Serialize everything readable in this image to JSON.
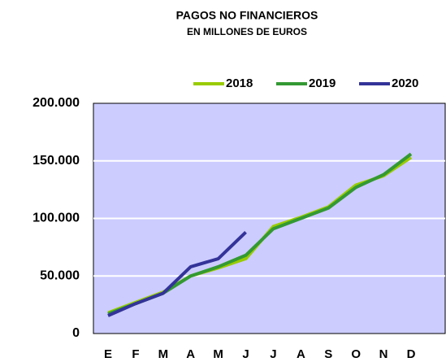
{
  "chart_data": {
    "type": "line",
    "title": "PAGOS NO FINANCIEROS",
    "subtitle": "EN MILLONES DE EUROS",
    "categories": [
      "E",
      "F",
      "M",
      "A",
      "M",
      "J",
      "J",
      "A",
      "S",
      "O",
      "N",
      "D"
    ],
    "series": [
      {
        "name": "2018",
        "color": "#99cc00",
        "values": [
          18000,
          27000,
          36000,
          50000,
          57000,
          65000,
          93000,
          101000,
          110000,
          129000,
          137000,
          153000
        ]
      },
      {
        "name": "2019",
        "color": "#339933",
        "values": [
          17000,
          26000,
          35000,
          50000,
          58000,
          68000,
          91000,
          100000,
          109000,
          127000,
          138000,
          156000
        ]
      },
      {
        "name": "2020",
        "color": "#333399",
        "values": [
          15500,
          26000,
          35000,
          58000,
          65000,
          88000,
          null,
          null,
          null,
          null,
          null,
          null
        ]
      }
    ],
    "ylim": [
      0,
      200000
    ],
    "yticks": [
      0,
      {
        "value": 50000,
        "label": "50.000"
      },
      {
        "value": 100000,
        "label": "100.000"
      },
      {
        "value": 150000,
        "label": "150.000"
      },
      {
        "value": 200000,
        "label": "200.000"
      }
    ],
    "grid": true,
    "legend": "top-right",
    "background": "#ccccff"
  }
}
